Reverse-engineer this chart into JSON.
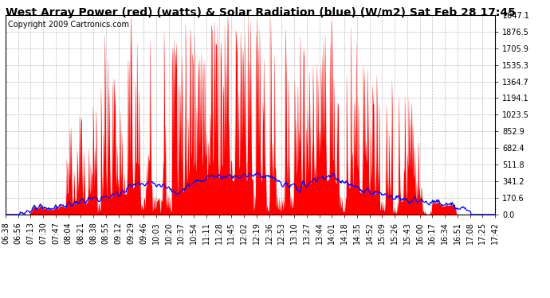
{
  "title": "West Array Power (red) (watts) & Solar Radiation (blue) (W/m2) Sat Feb 28 17:45",
  "copyright": "Copyright 2009 Cartronics.com",
  "yticks": [
    0.0,
    170.6,
    341.2,
    511.8,
    682.4,
    852.9,
    1023.5,
    1194.1,
    1364.7,
    1535.3,
    1705.9,
    1876.5,
    2047.1
  ],
  "ymax": 2047.1,
  "ymin": 0.0,
  "bg_color": "#ffffff",
  "plot_bg_color": "#ffffff",
  "grid_color": "#aaaaaa",
  "red_color": "#ff0000",
  "blue_color": "#0000ff",
  "title_fontsize": 10,
  "copyright_fontsize": 7,
  "tick_fontsize": 7,
  "xtick_labels": [
    "06:38",
    "06:56",
    "07:13",
    "07:30",
    "07:47",
    "08:04",
    "08:21",
    "08:38",
    "08:55",
    "09:12",
    "09:29",
    "09:46",
    "10:03",
    "10:20",
    "10:37",
    "10:54",
    "11:11",
    "11:28",
    "11:45",
    "12:02",
    "12:19",
    "12:36",
    "12:53",
    "13:10",
    "13:27",
    "13:44",
    "14:01",
    "14:18",
    "14:35",
    "14:52",
    "15:09",
    "15:26",
    "15:43",
    "16:00",
    "16:17",
    "16:34",
    "16:51",
    "17:08",
    "17:25",
    "17:42"
  ]
}
